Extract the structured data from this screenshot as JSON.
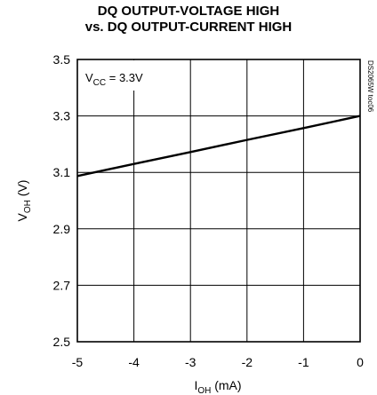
{
  "chart_data": {
    "type": "line",
    "title_line1": "DQ OUTPUT-VOLTAGE HIGH",
    "title_line2": "vs. DQ OUTPUT-CURRENT HIGH",
    "xlabel": {
      "main": "I",
      "sub": "OH",
      "unit": " (mA)"
    },
    "ylabel": {
      "main": "V",
      "sub": "OH",
      "unit": " (V)"
    },
    "xlim": [
      -5,
      0
    ],
    "ylim": [
      2.5,
      3.5
    ],
    "x_ticks": [
      "-5",
      "-4",
      "-3",
      "-2",
      "-1",
      "0"
    ],
    "y_ticks": [
      "2.5",
      "2.7",
      "2.9",
      "3.1",
      "3.3",
      "3.5"
    ],
    "x_tick_values": [
      -5,
      -4,
      -3,
      -2,
      -1,
      0
    ],
    "y_tick_values": [
      2.5,
      2.7,
      2.9,
      3.1,
      3.3,
      3.5
    ],
    "grid": true,
    "series": [
      {
        "x": [
          -5,
          -4,
          -3,
          -2,
          -1,
          0
        ],
        "y": [
          3.087,
          3.13,
          3.172,
          3.215,
          3.257,
          3.3
        ]
      }
    ],
    "annotation": {
      "main": "V",
      "sub": "CC",
      "rest": " = 3.3V"
    },
    "side_text": "DS2065W toc06"
  }
}
